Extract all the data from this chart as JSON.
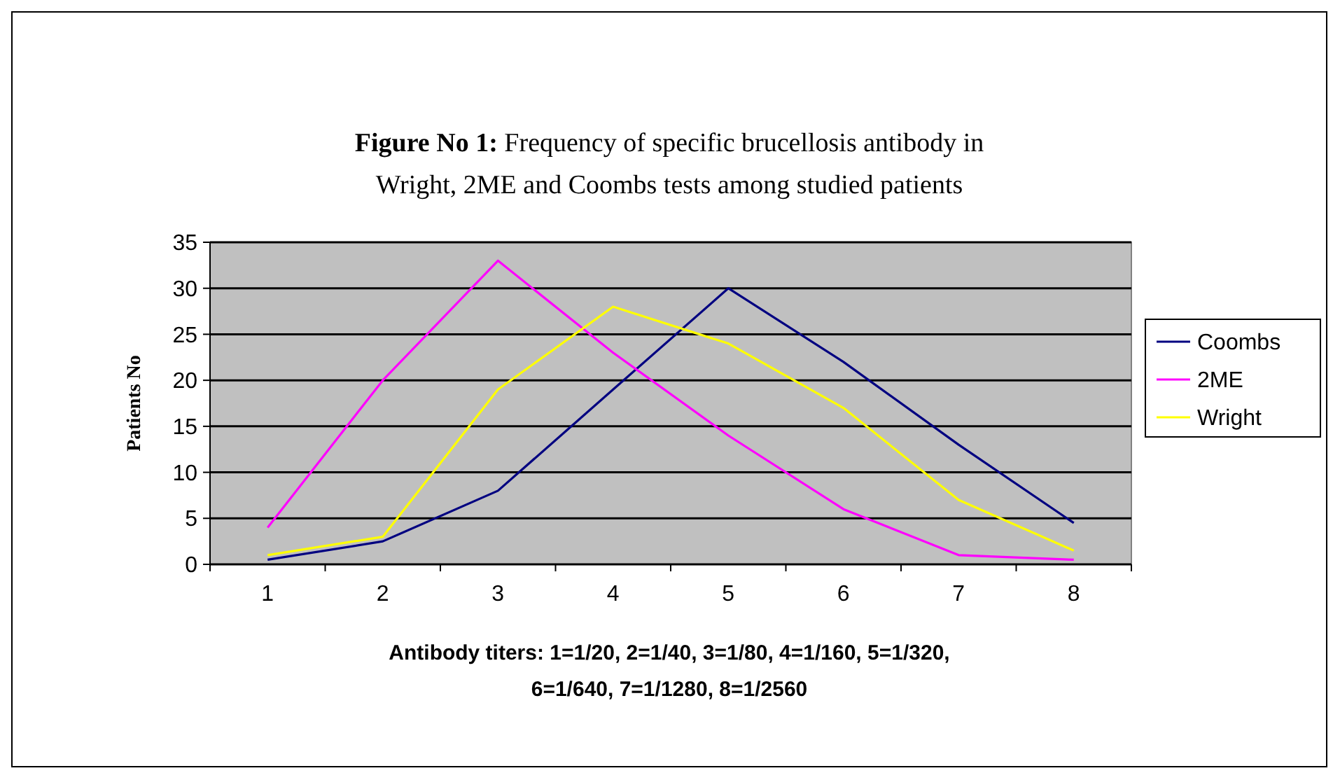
{
  "chart_data": {
    "type": "line",
    "title": "Figure No 1: Frequency of specific brucellosis antibody in Wright, 2ME and Coombs tests among studied patients",
    "xlabel": "Antibody titers: 1=1/20, 2=1/40, 3=1/80, 4=1/160, 5=1/320, 6=1/640, 7=1/1280, 8=1/2560",
    "ylabel": "Patients No",
    "categories": [
      "1",
      "2",
      "3",
      "4",
      "5",
      "6",
      "7",
      "8"
    ],
    "series": [
      {
        "name": "Coombs",
        "color": "#000080",
        "values": [
          0.5,
          2.5,
          8,
          19,
          30,
          22,
          13,
          4.5
        ]
      },
      {
        "name": "2ME",
        "color": "#ff00ff",
        "values": [
          4,
          20,
          33,
          23,
          14,
          6,
          1,
          0.5
        ]
      },
      {
        "name": "Wright",
        "color": "#ffff00",
        "values": [
          1,
          3,
          19,
          28,
          24,
          17,
          7,
          1.5
        ]
      }
    ],
    "ylim": [
      0,
      35
    ],
    "yticks": [
      0,
      5,
      10,
      15,
      20,
      25,
      30,
      35
    ],
    "grid": "y",
    "legend": "right",
    "marker": "none",
    "line_style": "solid"
  }
}
